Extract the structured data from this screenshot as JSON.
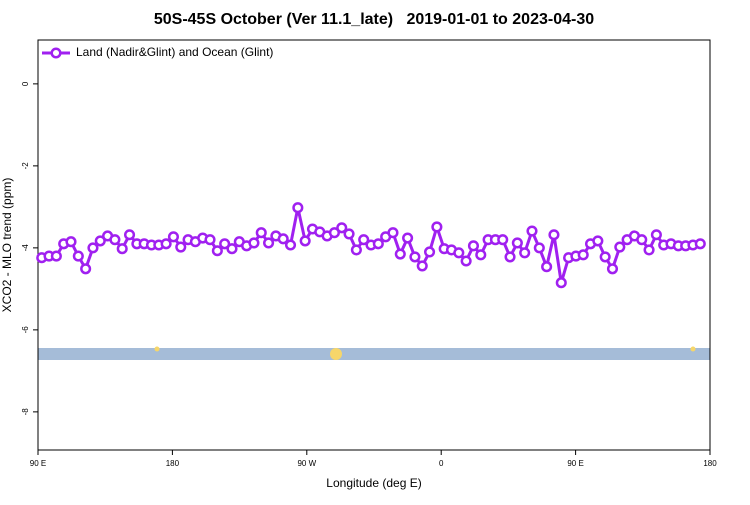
{
  "chart_data": {
    "type": "line",
    "title": "50S-45S October (Ver 11.1_late)   2019-01-01 to 2023-04-30",
    "xlabel": "Longitude (deg E)",
    "ylabel": "XCO2 - MLO trend (ppm)",
    "xlim": [
      90,
      540
    ],
    "ylim": [
      -8.93,
      1.07
    ],
    "xticks": [
      {
        "value": 90,
        "label": "90 E"
      },
      180,
      {
        "value": 270,
        "label": "90 W"
      },
      {
        "value": 360,
        "label": "0"
      },
      {
        "value": 450,
        "label": "90 E"
      },
      {
        "value": 540,
        "label": "180"
      }
    ],
    "yticks": [
      0,
      -2,
      -4,
      -6,
      -8
    ],
    "legend": "upper left",
    "x": [
      92.5,
      97.4,
      102.3,
      107.2,
      112.1,
      117,
      121.9,
      126.8,
      131.7,
      136.6,
      141.5,
      146.4,
      151.3,
      156.2,
      161.1,
      166,
      170.9,
      175.8,
      180.7,
      185.6,
      190.5,
      195.4,
      200.3,
      205.2,
      210.1,
      215,
      219.9,
      224.8,
      229.7,
      234.6,
      239.5,
      244.4,
      249.3,
      254.2,
      259.1,
      264,
      268.9,
      273.8,
      278.7,
      283.6,
      288.5,
      293.4,
      298.3,
      303.2,
      308.1,
      313,
      317.9,
      322.8,
      327.7,
      332.6,
      337.5,
      342.4,
      347.3,
      352.2,
      357.1,
      362,
      366.9,
      371.8,
      376.7,
      381.6,
      386.5,
      391.4,
      396.3,
      401.2,
      406.1,
      411,
      415.9,
      420.8,
      425.7,
      430.6,
      435.5,
      440.4,
      445.3,
      450.2,
      455.1,
      460,
      464.9,
      469.8,
      474.7,
      479.6,
      484.5,
      489.4,
      494.3,
      499.2,
      504.1,
      509,
      513.9,
      518.8,
      523.7,
      528.6,
      533.5
    ],
    "series": [
      {
        "name": "Land (Nadir&Glint) and Ocean (Glint)",
        "color": "#a020f0",
        "values": [
          -4.24,
          -4.2,
          -4.2,
          -3.9,
          -3.85,
          -4.2,
          -4.51,
          -4.0,
          -3.83,
          -3.71,
          -3.8,
          -4.02,
          -3.68,
          -3.9,
          -3.9,
          -3.93,
          -3.93,
          -3.9,
          -3.73,
          -3.98,
          -3.8,
          -3.85,
          -3.76,
          -3.8,
          -4.07,
          -3.9,
          -4.02,
          -3.85,
          -3.95,
          -3.88,
          -3.63,
          -3.88,
          -3.71,
          -3.78,
          -3.93,
          -3.02,
          -3.83,
          -3.54,
          -3.61,
          -3.71,
          -3.63,
          -3.51,
          -3.66,
          -4.05,
          -3.8,
          -3.93,
          -3.9,
          -3.73,
          -3.63,
          -4.15,
          -3.76,
          -4.22,
          -4.44,
          -4.1,
          -3.49,
          -4.02,
          -4.05,
          -4.12,
          -4.32,
          -3.95,
          -4.17,
          -3.8,
          -3.8,
          -3.8,
          -4.22,
          -3.88,
          -4.12,
          -3.59,
          -4.0,
          -4.46,
          -3.68,
          -4.85,
          -4.24,
          -4.2,
          -4.17,
          -3.9,
          -3.83,
          -4.22,
          -4.51,
          -3.98,
          -3.8,
          -3.71,
          -3.8,
          -4.05,
          -3.68,
          -3.93,
          -3.9,
          -3.95,
          -3.95,
          -3.93,
          -3.9
        ]
      }
    ]
  }
}
